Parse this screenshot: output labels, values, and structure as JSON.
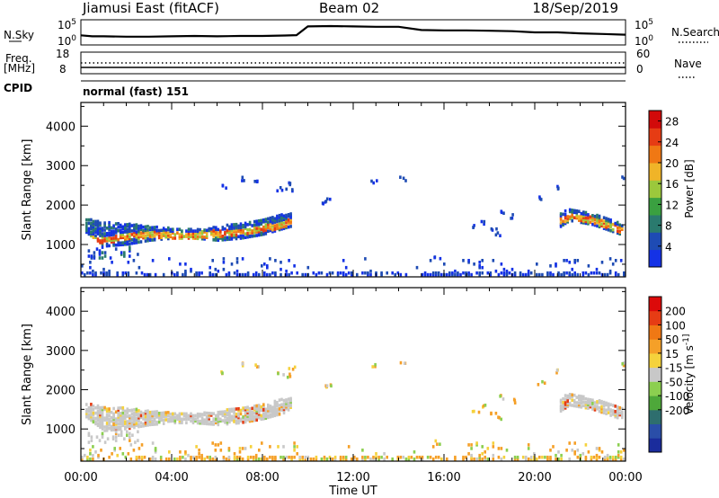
{
  "header": {
    "title": "Jiamusi East (fitACF)",
    "beam": "Beam 02",
    "date": "18/Sep/2019"
  },
  "top_panel": {
    "nsky_label": "N.Sky",
    "nsky_ticks": [
      "10^5",
      "10^0"
    ],
    "nsearch_label": "N.Search",
    "nsearch_ticks": [
      "10^5",
      "10^0"
    ],
    "freq_label": [
      "Freq.",
      "[MHz]"
    ],
    "freq_ticks": [
      "18",
      "8"
    ],
    "nave_label": "Nave",
    "nave_ticks": [
      "60",
      "0"
    ],
    "cpid_label": "CPID",
    "cpid_value": "normal (fast) 151"
  },
  "colors": {
    "power_scale": [
      "#1432e6",
      "#1e4bb4",
      "#2a7a6e",
      "#3aa040",
      "#9bc83c",
      "#f0b428",
      "#f07814",
      "#e63c14",
      "#d20a0a"
    ],
    "velocity_scale": [
      "#1a2c9c",
      "#2a4ea8",
      "#2e6e6e",
      "#4ea83a",
      "#8ccf50",
      "#c8c8c8",
      "#f5d23c",
      "#f5a028",
      "#f07814",
      "#e63c14",
      "#dc0a0a"
    ]
  },
  "chart_data": [
    {
      "type": "line",
      "name": "sky-noise",
      "x": [
        0,
        0.5,
        1,
        2,
        3,
        4,
        5,
        6,
        7,
        8,
        9,
        9.5,
        10,
        11,
        12,
        13,
        14,
        15,
        16,
        17,
        18,
        19,
        20,
        21,
        22,
        23,
        24
      ],
      "y": [
        0.35,
        0.3,
        0.3,
        0.28,
        0.28,
        0.3,
        0.32,
        0.3,
        0.32,
        0.32,
        0.34,
        0.36,
        0.8,
        0.82,
        0.8,
        0.78,
        0.78,
        0.62,
        0.6,
        0.6,
        0.58,
        0.56,
        0.5,
        0.5,
        0.45,
        0.42,
        0.38
      ],
      "ylim": [
        0,
        1
      ],
      "yticks": [
        "10^0",
        "10^5"
      ]
    },
    {
      "type": "heatmap",
      "name": "power",
      "xlabel": "Time UT",
      "ylabel": "Slant Range [km]",
      "xticks": [
        "00:00",
        "04:00",
        "08:00",
        "12:00",
        "16:00",
        "20:00",
        "00:00"
      ],
      "xlim": [
        0,
        24
      ],
      "yticks": [
        1000,
        2000,
        3000,
        4000
      ],
      "ylim": [
        180,
        4600
      ],
      "colorbar": {
        "label": "Power [dB]",
        "ticks": [
          4,
          8,
          12,
          16,
          20,
          24,
          28
        ],
        "range": [
          0,
          30
        ]
      },
      "bands": [
        {
          "x": [
            0.2,
            1,
            2,
            3,
            4,
            5,
            6,
            7,
            8,
            9.2
          ],
          "top": [
            1700,
            1600,
            1580,
            1500,
            1450,
            1420,
            1500,
            1600,
            1700,
            1850
          ],
          "bottom": [
            1350,
            1000,
            1050,
            1150,
            1200,
            1200,
            1150,
            1200,
            1300,
            1500
          ],
          "core": [
            1200,
            1150,
            1250,
            1300,
            1280,
            1270,
            1320,
            1380,
            1450,
            1600
          ]
        },
        {
          "x": [
            21.1,
            21.5,
            22,
            22.5,
            23,
            23.5,
            24
          ],
          "top": [
            1850,
            1950,
            1900,
            1800,
            1750,
            1650,
            1550
          ],
          "bottom": [
            1500,
            1650,
            1600,
            1550,
            1450,
            1350,
            1250
          ],
          "core": [
            1650,
            1750,
            1700,
            1650,
            1550,
            1450,
            1400
          ]
        }
      ]
    },
    {
      "type": "heatmap",
      "name": "velocity",
      "xlabel": "Time UT",
      "ylabel": "Slant Range [km]",
      "xticks": [
        "00:00",
        "04:00",
        "08:00",
        "12:00",
        "16:00",
        "20:00",
        "00:00"
      ],
      "xlim": [
        0,
        24
      ],
      "yticks": [
        1000,
        2000,
        3000,
        4000
      ],
      "ylim": [
        180,
        4600
      ],
      "colorbar": {
        "label": "Velocity [m s^-1]",
        "ticks": [
          "200",
          "100",
          "50",
          "15",
          "-15",
          "-50",
          "-100",
          "-200"
        ]
      }
    }
  ]
}
